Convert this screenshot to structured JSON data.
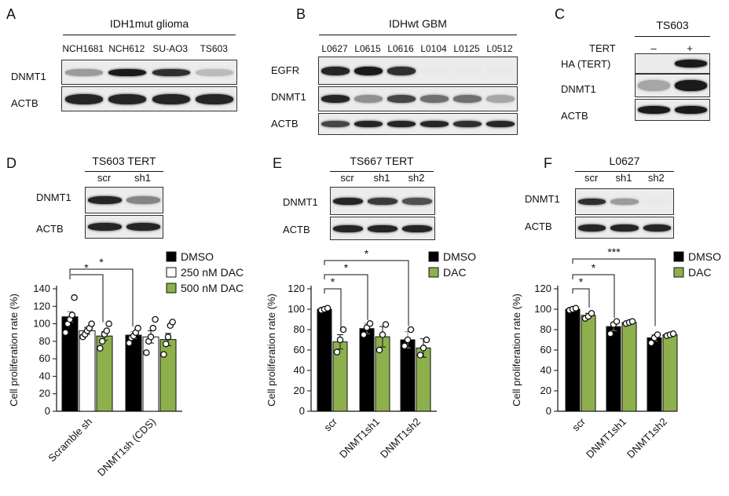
{
  "A": {
    "panel_label": "A",
    "header": "IDH1mut glioma",
    "lanes": [
      "NCH1681",
      "NCH612",
      "SU-AO3",
      "TS603"
    ],
    "rows": [
      "DNMT1",
      "ACTB"
    ],
    "band_intensity": {
      "DNMT1": [
        0.35,
        0.95,
        0.85,
        0.2
      ],
      "ACTB": [
        0.9,
        0.9,
        0.9,
        0.9
      ]
    }
  },
  "B": {
    "panel_label": "B",
    "header": "IDHwt GBM",
    "lanes": [
      "L0627",
      "L0615",
      "L0616",
      "L0104",
      "L0125",
      "L0512"
    ],
    "rows": [
      "EGFR",
      "DNMT1",
      "ACTB"
    ],
    "band_intensity": {
      "EGFR": [
        0.9,
        0.95,
        0.85,
        0.05,
        0.05,
        0.05
      ],
      "DNMT1": [
        0.9,
        0.4,
        0.75,
        0.55,
        0.55,
        0.3
      ],
      "ACTB": [
        0.75,
        0.9,
        0.9,
        0.9,
        0.85,
        0.9
      ]
    }
  },
  "C": {
    "panel_label": "C",
    "header": "TS603",
    "condition_label": "TERT",
    "conditions": [
      "–",
      "+"
    ],
    "rows": [
      "HA (TERT)",
      "DNMT1",
      "ACTB"
    ],
    "band_intensity": {
      "HA (TERT)": [
        0.0,
        0.95
      ],
      "DNMT1": [
        0.3,
        0.95
      ],
      "ACTB": [
        0.95,
        0.95
      ]
    }
  },
  "D": {
    "panel_label": "D",
    "header": "TS603 TERT",
    "lanes": [
      "scr",
      "sh1"
    ],
    "rows": [
      "DNMT1",
      "ACTB"
    ],
    "band_intensity": {
      "DNMT1": [
        0.9,
        0.45
      ],
      "ACTB": [
        0.9,
        0.9
      ]
    },
    "significance": [
      "*",
      "*"
    ]
  },
  "E": {
    "panel_label": "E",
    "header": "TS667 TERT",
    "lanes": [
      "scr",
      "sh1",
      "sh2"
    ],
    "rows": [
      "DNMT1",
      "ACTB"
    ],
    "band_intensity": {
      "DNMT1": [
        0.9,
        0.8,
        0.7
      ],
      "ACTB": [
        0.9,
        0.9,
        0.9
      ]
    },
    "significance": [
      "*",
      "*",
      "*"
    ]
  },
  "F": {
    "panel_label": "F",
    "header": "L0627",
    "lanes": [
      "scr",
      "sh1",
      "sh2"
    ],
    "rows": [
      "DNMT1",
      "ACTB"
    ],
    "band_intensity": {
      "DNMT1": [
        0.85,
        0.35,
        0.05
      ],
      "ACTB": [
        0.9,
        0.9,
        0.9
      ]
    },
    "significance": [
      "*",
      "*",
      "***"
    ]
  },
  "colors": {
    "dmso": "#000000",
    "dac250": "#ffffff",
    "dac500": "#8db04c",
    "dac": "#8db04c"
  },
  "chart_data": [
    {
      "type": "bar",
      "panel": "D",
      "ylabel": "Cell proliferation rate (%)",
      "ylim": [
        0,
        140
      ],
      "yticks": [
        0,
        20,
        40,
        60,
        80,
        100,
        120,
        140
      ],
      "categories": [
        "Scramble sh",
        "DNMT1sh (CDS)"
      ],
      "series": [
        {
          "name": "DMSO",
          "values": [
            108,
            87
          ],
          "err": [
            6,
            4
          ],
          "points": [
            [
              90,
              100,
              105,
              110,
              130
            ],
            [
              78,
              84,
              86,
              90,
              95
            ]
          ]
        },
        {
          "name": "250 nM DAC",
          "values": [
            92,
            85
          ],
          "err": [
            4,
            7
          ],
          "points": [
            [
              85,
              88,
              92,
              95,
              100
            ],
            [
              67,
              80,
              85,
              95,
              105
            ]
          ]
        },
        {
          "name": "500 nM DAC",
          "values": [
            86,
            82
          ],
          "err": [
            5,
            7
          ],
          "points": [
            [
              72,
              80,
              88,
              92,
              100
            ],
            [
              65,
              77,
              85,
              98,
              102
            ]
          ]
        }
      ],
      "significance": [
        "*",
        "*"
      ]
    },
    {
      "type": "bar",
      "panel": "E",
      "ylabel": "Cell proliferation rate (%)",
      "ylim": [
        0,
        120
      ],
      "yticks": [
        0,
        20,
        40,
        60,
        80,
        100,
        120
      ],
      "categories": [
        "scr",
        "DNMT1sh1",
        "DNMT1sh2"
      ],
      "series": [
        {
          "name": "DMSO",
          "values": [
            100,
            81,
            70
          ],
          "err": [
            0,
            5,
            8
          ],
          "points": [
            [
              99,
              100,
              101
            ],
            [
              75,
              82,
              86
            ],
            [
              64,
              70,
              80
            ]
          ]
        },
        {
          "name": "DAC",
          "values": [
            68,
            73,
            62
          ],
          "err": [
            7,
            10,
            9
          ],
          "points": [
            [
              58,
              70,
              80
            ],
            [
              60,
              75,
              85
            ],
            [
              55,
              62,
              70
            ]
          ]
        }
      ],
      "significance": [
        "*",
        "*",
        "*"
      ]
    },
    {
      "type": "bar",
      "panel": "F",
      "ylabel": "Cell proliferation rate (%)",
      "ylim": [
        0,
        120
      ],
      "yticks": [
        0,
        20,
        40,
        60,
        80,
        100,
        120
      ],
      "categories": [
        "scr",
        "DNMT1sh1",
        "DNMT1sh2"
      ],
      "series": [
        {
          "name": "DMSO",
          "values": [
            100,
            83,
            72
          ],
          "err": [
            1,
            4,
            3
          ],
          "points": [
            [
              99,
              100,
              101
            ],
            [
              76,
              85,
              88
            ],
            [
              67,
              72,
              75
            ]
          ]
        },
        {
          "name": "DAC",
          "values": [
            94,
            87,
            75
          ],
          "err": [
            2,
            1,
            1
          ],
          "points": [
            [
              91,
              93,
              96
            ],
            [
              86,
              87,
              88
            ],
            [
              74,
              75,
              76
            ]
          ]
        }
      ],
      "significance": [
        "*",
        "*",
        "***"
      ]
    }
  ]
}
